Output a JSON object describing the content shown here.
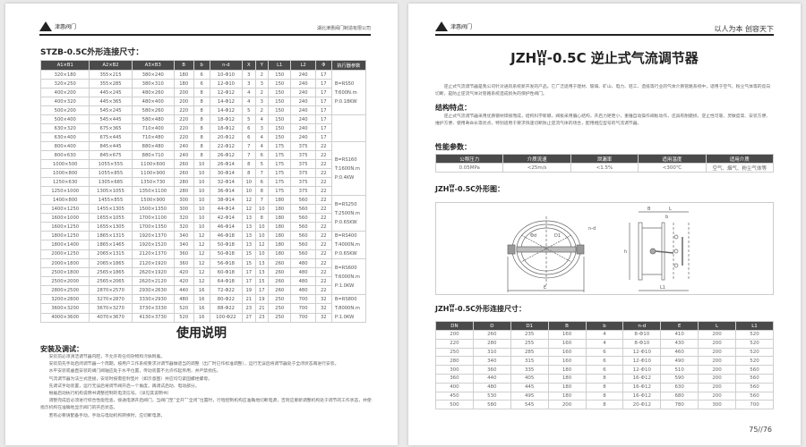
{
  "left_page": {
    "header": {
      "brand": "津惠阀门",
      "company": "湖北津惠阀门制造有限公司"
    },
    "table_title": "STZB-0.5C外形连接尺寸：",
    "columns": [
      "A1×B1",
      "A2×B2",
      "A3×B3",
      "B",
      "b",
      "n-d",
      "X",
      "Y",
      "L1",
      "L2",
      "Φ",
      "执行器参数"
    ],
    "rows": [
      [
        "320×180",
        "355×215",
        "380×240",
        "180",
        "6",
        "10-Φ10",
        "3",
        "2",
        "150",
        "240",
        "17"
      ],
      [
        "320×250",
        "355×285",
        "380×310",
        "180",
        "6",
        "12-Φ10",
        "3",
        "3",
        "150",
        "240",
        "17"
      ],
      [
        "400×200",
        "445×245",
        "480×260",
        "200",
        "8",
        "12-Φ12",
        "4",
        "2",
        "150",
        "240",
        "17"
      ],
      [
        "400×320",
        "445×365",
        "480×400",
        "200",
        "8",
        "14-Φ12",
        "4",
        "3",
        "150",
        "240",
        "17"
      ],
      [
        "500×200",
        "545×245",
        "580×260",
        "220",
        "8",
        "14-Φ12",
        "5",
        "2",
        "150",
        "240",
        "17"
      ],
      [
        "500×400",
        "545×445",
        "580×480",
        "220",
        "8",
        "18-Φ12",
        "5",
        "4",
        "150",
        "240",
        "17"
      ],
      [
        "630×320",
        "675×365",
        "710×400",
        "220",
        "8",
        "18-Φ12",
        "6",
        "3",
        "150",
        "240",
        "17"
      ],
      [
        "630×400",
        "675×445",
        "710×480",
        "220",
        "8",
        "20-Φ12",
        "6",
        "4",
        "150",
        "240",
        "17"
      ],
      [
        "800×400",
        "845×445",
        "880×480",
        "240",
        "8",
        "22-Φ12",
        "7",
        "4",
        "175",
        "375",
        "22"
      ],
      [
        "800×630",
        "845×675",
        "880×710",
        "240",
        "8",
        "26-Φ12",
        "7",
        "6",
        "175",
        "375",
        "22"
      ],
      [
        "1000×500",
        "1055×555",
        "1100×600",
        "260",
        "10",
        "26-Φ14",
        "8",
        "5",
        "175",
        "375",
        "22"
      ],
      [
        "1000×800",
        "1055×855",
        "1100×900",
        "260",
        "10",
        "30-Φ14",
        "8",
        "7",
        "175",
        "375",
        "22"
      ],
      [
        "1250×630",
        "1305×685",
        "1350×730",
        "280",
        "10",
        "32-Φ14",
        "10",
        "6",
        "175",
        "375",
        "22"
      ],
      [
        "1250×1000",
        "1305×1055",
        "1350×1100",
        "280",
        "10",
        "36-Φ14",
        "10",
        "8",
        "175",
        "375",
        "22"
      ],
      [
        "1400×800",
        "1455×855",
        "1500×900",
        "300",
        "10",
        "38-Φ14",
        "12",
        "7",
        "180",
        "560",
        "22"
      ],
      [
        "1400×1250",
        "1455×1305",
        "1500×1350",
        "300",
        "10",
        "44-Φ14",
        "12",
        "10",
        "180",
        "560",
        "22"
      ],
      [
        "1600×1000",
        "1655×1055",
        "1700×1100",
        "320",
        "10",
        "42-Φ14",
        "13",
        "8",
        "180",
        "560",
        "22"
      ],
      [
        "1600×1250",
        "1655×1305",
        "1700×1350",
        "320",
        "10",
        "46-Φ14",
        "13",
        "10",
        "180",
        "560",
        "22"
      ],
      [
        "1800×1250",
        "1865×1315",
        "1920×1370",
        "340",
        "12",
        "46-Φ18",
        "13",
        "10",
        "180",
        "560",
        "22"
      ],
      [
        "1800×1400",
        "1865×1465",
        "1920×1520",
        "340",
        "12",
        "50-Φ18",
        "13",
        "12",
        "180",
        "560",
        "22"
      ],
      [
        "2000×1250",
        "2065×1315",
        "2120×1370",
        "360",
        "12",
        "50-Φ18",
        "15",
        "10",
        "180",
        "560",
        "22"
      ],
      [
        "2000×1800",
        "2065×1865",
        "2120×1920",
        "360",
        "12",
        "56-Φ18",
        "15",
        "13",
        "260",
        "480",
        "22"
      ],
      [
        "2500×1800",
        "2565×1865",
        "2620×1920",
        "420",
        "12",
        "60-Φ18",
        "17",
        "13",
        "260",
        "480",
        "22"
      ],
      [
        "2500×2000",
        "2565×2065",
        "2620×2120",
        "420",
        "12",
        "64-Φ18",
        "17",
        "15",
        "260",
        "480",
        "22"
      ],
      [
        "2800×2500",
        "2870×2570",
        "2930×2630",
        "440",
        "16",
        "72-Φ22",
        "19",
        "17",
        "260",
        "480",
        "22"
      ],
      [
        "3200×2800",
        "3270×2870",
        "3330×2930",
        "480",
        "16",
        "80-Φ22",
        "21",
        "19",
        "250",
        "700",
        "32"
      ],
      [
        "3600×3200",
        "3670×3270",
        "3730×3330",
        "520",
        "16",
        "88-Φ22",
        "23",
        "21",
        "250",
        "700",
        "32"
      ],
      [
        "4000×3600",
        "4070×3670",
        "4130×3730",
        "520",
        "16",
        "100-Φ22",
        "27",
        "23",
        "250",
        "700",
        "32"
      ]
    ],
    "actuator_groups": [
      {
        "span": 5,
        "lines": [
          "B=RS50",
          "T:600N.m",
          "P:0.18KW"
        ]
      },
      {
        "span": 3,
        "lines": []
      },
      {
        "span": 6,
        "lines": [
          "B=RS160",
          "T:1600N.m",
          "P:0.4KW"
        ]
      },
      {
        "span": 4,
        "lines": [
          "B=RS250",
          "T:2500N.m",
          "P:0.65KW"
        ]
      },
      {
        "span": 3,
        "lines": [
          "B=RS400",
          "T:4000N.m",
          "P:0.65KW"
        ]
      },
      {
        "span": 4,
        "lines": [
          "B=RS600",
          "T:6000N.m",
          "P:1.0KW"
        ]
      },
      {
        "span": 3,
        "lines": [
          "B=RS800",
          "T:8000N.m",
          "P:1.0KW"
        ]
      }
    ],
    "usage_title": "使用说明",
    "install_title": "安装及调试：",
    "install_paragraphs": [
      "安装前必须清洁调节器内腔，不允许有任何杂物和污垢附着。",
      "安装前先手动启闭调节器一个周期，按用户工作系统要求对调节器做适当的调整（出厂时已作标准调整），运行无误后将调节器处于全闭状态再进行安装。",
      "水平安装或垂直安装的阀门阀轴应处于水平位置，传动装置不允许作起吊用，并严禁损伤。",
      "气流调节器为法兰式连接，安装时按需密封垫片（如示意图）并应均匀紧固螺栓螺母。",
      "先调试手动装置，运行无误后将调节阀开启一个角度，再调试启动、电动部分。",
      "根据启动执行机构说明书调整控制的电流信号。（详见其说明书）",
      "调整完成后必须进行综合性能检查，接通电源开启阀门，当阀门至“全开”“全闭”位置时，行程控制机构应准确地切断电源，否则应重新调整机构处于调节的工作状态，并使指示机构在准确地显示阀门的开启状态。",
      "若有必要请配备手动，手动与电动机构转换时，应切断电源。"
    ]
  },
  "right_page": {
    "header": {
      "brand": "津惠阀门",
      "slogan": "以人为本  创容天下"
    },
    "title_prefix": "JZH",
    "title_sup": "W",
    "title_sub": "H",
    "title_suffix": "-0.5C  逆止式气流调节器",
    "intro": "逆止式气流调节器是我公司针对通风系统新开发的产品。它广泛适用于建材、玻璃、矿山、电力、轻工、造纸等行业的气体介质管路系统中，适用于空气、粉尘气体等的反向切断，是防止逆流气体对管路系统造成损失的保护性阀门。",
    "structure_title": "结构特点：",
    "structure_text": "逆止式气流调节器采用优质钢材焊接而成，结构科学新颖，阀板采用偏心结构，开启力矩更小，重锤自动操作阀板动作，还具有耐磨损、逆止性可靠、灵敏度高、安装方便、维护方便、使用寿命长等优点，特别适用于要求快速切断防止逆流气体的场合，配用相应型号的气流调节器。",
    "perf_title": "性能参数：",
    "perf_columns": [
      "公称压力",
      "介质流速",
      "泄漏率",
      "适用温度",
      "适用介质"
    ],
    "perf_row": [
      "0.05MPa",
      "<25m/s",
      "<1.5%",
      "<300℃",
      "空气、烟气、粉尘气体等"
    ],
    "outline_title_suffix": "-0.5C外形图：",
    "diagram_labels": {
      "d0": "Φd",
      "d1": "D1",
      "nd": "n-d",
      "e": "E",
      "b_big": "B",
      "l": "L",
      "b_small": "b",
      "h": "h",
      "l1": "L1"
    },
    "conn_title_suffix": "-0.5C外形连接尺寸：",
    "conn_columns": [
      "DN",
      "D",
      "D1",
      "B",
      "b",
      "n-d",
      "E",
      "L",
      "L1"
    ],
    "conn_rows": [
      [
        "200",
        "260",
        "235",
        "160",
        "4",
        "8-Φ10",
        "410",
        "200",
        "520"
      ],
      [
        "220",
        "280",
        "255",
        "160",
        "4",
        "8-Φ10",
        "430",
        "200",
        "520"
      ],
      [
        "250",
        "310",
        "285",
        "160",
        "6",
        "12-Φ10",
        "460",
        "200",
        "520"
      ],
      [
        "280",
        "340",
        "315",
        "160",
        "6",
        "12-Φ10",
        "490",
        "200",
        "520"
      ],
      [
        "300",
        "360",
        "335",
        "180",
        "6",
        "12-Φ10",
        "510",
        "200",
        "560"
      ],
      [
        "360",
        "440",
        "405",
        "180",
        "8",
        "16-Φ12",
        "590",
        "200",
        "560"
      ],
      [
        "400",
        "480",
        "445",
        "180",
        "8",
        "16-Φ12",
        "630",
        "200",
        "560"
      ],
      [
        "450",
        "530",
        "495",
        "180",
        "8",
        "16-Φ12",
        "680",
        "200",
        "560"
      ],
      [
        "500",
        "580",
        "545",
        "200",
        "8",
        "20-Φ12",
        "780",
        "300",
        "700"
      ]
    ],
    "page_number": "75//76"
  },
  "colors": {
    "table_header": "#4a4a4a",
    "rule": "#222222"
  }
}
